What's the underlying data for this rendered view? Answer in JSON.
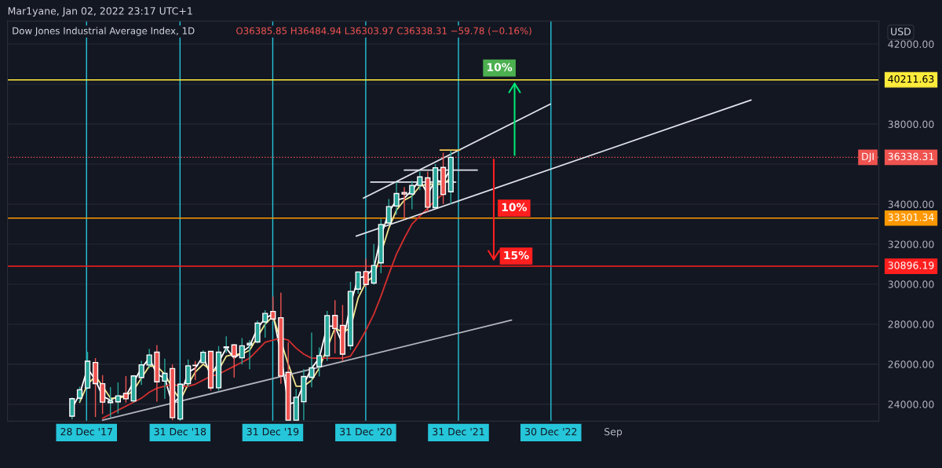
{
  "chart_data": {
    "type": "candlestick",
    "title": "Dow Jones Industrial Average Index, 1D",
    "subtitle": "Mar1yane, Jan 02, 2022 23:17 UTC+1",
    "ylabel": "USD",
    "x": [
      "2017-11",
      "2017-12",
      "2018-01",
      "2018-02",
      "2018-03",
      "2018-04",
      "2018-05",
      "2018-06",
      "2018-07",
      "2018-08",
      "2018-09",
      "2018-10",
      "2018-11",
      "2018-12",
      "2019-01",
      "2019-02",
      "2019-03",
      "2019-04",
      "2019-05",
      "2019-06",
      "2019-07",
      "2019-08",
      "2019-09",
      "2019-10",
      "2019-11",
      "2019-12",
      "2020-01",
      "2020-02",
      "2020-03",
      "2020-04",
      "2020-05",
      "2020-06",
      "2020-07",
      "2020-08",
      "2020-09",
      "2020-10",
      "2020-11",
      "2020-12",
      "2021-01",
      "2021-02",
      "2021-03",
      "2021-04",
      "2021-05",
      "2021-06",
      "2021-07",
      "2021-08",
      "2021-09",
      "2021-10",
      "2021-11",
      "2021-12"
    ],
    "ohlc": [
      [
        23400,
        24330,
        23240,
        24272
      ],
      [
        24305,
        24876,
        24124,
        24719
      ],
      [
        24809,
        26617,
        24741,
        26149
      ],
      [
        26083,
        26307,
        23360,
        25029
      ],
      [
        25025,
        25450,
        23509,
        24103
      ],
      [
        24076,
        24858,
        23344,
        24163
      ],
      [
        24117,
        25087,
        23531,
        24416
      ],
      [
        24542,
        25403,
        24077,
        24271
      ],
      [
        24161,
        25462,
        24077,
        25415
      ],
      [
        25334,
        26167,
        24965,
        25965
      ],
      [
        25956,
        26770,
        25800,
        26458
      ],
      [
        26598,
        26951,
        24123,
        25116
      ],
      [
        25152,
        26277,
        24268,
        25538
      ],
      [
        25779,
        25980,
        23200,
        23327
      ],
      [
        23258,
        25057,
        23200,
        24999
      ],
      [
        25025,
        26241,
        24883,
        25916
      ],
      [
        25941,
        26156,
        25208,
        25929
      ],
      [
        26076,
        26696,
        26071,
        26593
      ],
      [
        26640,
        26660,
        24680,
        24815
      ],
      [
        24820,
        26908,
        24681,
        26600
      ],
      [
        26818,
        27399,
        26560,
        26864
      ],
      [
        26963,
        27003,
        25339,
        26403
      ],
      [
        26319,
        27307,
        25978,
        26917
      ],
      [
        26962,
        27202,
        25743,
        27046
      ],
      [
        27109,
        28175,
        27040,
        28051
      ],
      [
        28109,
        28701,
        27326,
        28538
      ],
      [
        28638,
        29374,
        28169,
        28256
      ],
      [
        28320,
        29569,
        25017,
        25409
      ],
      [
        25591,
        27102,
        23200,
        23200
      ],
      [
        23200,
        24765,
        23200,
        24346
      ],
      [
        24121,
        25759,
        23200,
        25383
      ],
      [
        25343,
        27581,
        24844,
        25813
      ],
      [
        25880,
        26838,
        25388,
        26428
      ],
      [
        26418,
        28659,
        26170,
        28430
      ],
      [
        28433,
        29199,
        26537,
        27782
      ],
      [
        27941,
        28958,
        26144,
        26502
      ],
      [
        26925,
        30116,
        26715,
        29638
      ],
      [
        29751,
        30637,
        29526,
        30606
      ],
      [
        30628,
        31272,
        29856,
        29983
      ],
      [
        30054,
        32009,
        29968,
        30932
      ],
      [
        31065,
        33259,
        30547,
        32982
      ],
      [
        33055,
        34257,
        32983,
        33875
      ],
      [
        33904,
        35091,
        33474,
        34529
      ],
      [
        34584,
        34849,
        33272,
        34503
      ],
      [
        34507,
        35171,
        33742,
        34935
      ],
      [
        34935,
        35631,
        34695,
        35361
      ],
      [
        35312,
        35631,
        33613,
        33844
      ],
      [
        33820,
        36000,
        33785,
        35820
      ],
      [
        35833,
        36565,
        34006,
        34484
      ],
      [
        34614,
        36679,
        34006,
        36338
      ]
    ],
    "colors": [
      "#26a69a",
      "#26a69a",
      "#26a69a",
      "#ef5350",
      "#ef5350",
      "#26a69a",
      "#26a69a",
      "#ef5350",
      "#26a69a",
      "#26a69a",
      "#26a69a",
      "#ef5350",
      "#26a69a",
      "#ef5350",
      "#26a69a",
      "#26a69a",
      "#ef5350",
      "#26a69a",
      "#ef5350",
      "#26a69a",
      "#26a69a",
      "#ef5350",
      "#26a69a",
      "#26a69a",
      "#26a69a",
      "#26a69a",
      "#ef5350",
      "#ef5350",
      "#ef5350",
      "#26a69a",
      "#26a69a",
      "#26a69a",
      "#26a69a",
      "#26a69a",
      "#ef5350",
      "#ef5350",
      "#26a69a",
      "#26a69a",
      "#ef5350",
      "#26a69a",
      "#26a69a",
      "#26a69a",
      "#26a69a",
      "#ef5350",
      "#26a69a",
      "#26a69a",
      "#ef5350",
      "#26a69a",
      "#ef5350",
      "#26a69a"
    ],
    "series": [
      {
        "type": "line",
        "color": "#ffffff",
        "values": [
          23800,
          24500,
          25800,
          25200,
          24400,
          24200,
          24400,
          24400,
          25100,
          25800,
          26300,
          25500,
          25300,
          24000,
          24400,
          25600,
          25800,
          26400,
          25400,
          26100,
          26800,
          26300,
          26600,
          26900,
          27800,
          28300,
          28500,
          26500,
          24000,
          24100,
          25000,
          25800,
          26300,
          27900,
          27900,
          27000,
          29000,
          30300,
          30400,
          30800,
          32400,
          33600,
          34200,
          34300,
          34700,
          35200,
          34500,
          35200,
          35100,
          35800
        ]
      },
      {
        "type": "line",
        "color": "#f0e68c",
        "values": [
          null,
          24100,
          25000,
          25400,
          24900,
          24300,
          24300,
          24400,
          24700,
          25300,
          25900,
          25900,
          25500,
          24800,
          24200,
          25000,
          25600,
          26000,
          25700,
          25700,
          26400,
          26500,
          26500,
          26700,
          null,
          28000,
          28400,
          null,
          26000,
          24900,
          24900,
          25200,
          25800,
          null,
          27800,
          27600,
          27800,
          29300,
          30100,
          30400,
          null,
          32800,
          33700,
          34200,
          34400,
          34900,
          35000,
          35000,
          35000,
          35300
        ]
      },
      {
        "type": "line",
        "color": "#d32f2f",
        "values": [
          null,
          null,
          null,
          null,
          23300,
          23500,
          23700,
          23900,
          24100,
          24300,
          24600,
          24800,
          24900,
          25000,
          24900,
          24900,
          25000,
          25200,
          25400,
          25500,
          25700,
          25900,
          26100,
          26300,
          26700,
          27100,
          27200,
          27300,
          27200,
          26800,
          26500,
          26300,
          26300,
          26300,
          26300,
          26300,
          26400,
          27000,
          27700,
          28500,
          29400,
          30500,
          31500,
          32300,
          33000,
          33400,
          33800,
          34200,
          34500,
          null
        ]
      },
      {
        "type": "line",
        "color": "#e0e3eb",
        "x": [
          "2020-12-22",
          "2022-12-28"
        ],
        "values": [
          34300,
          39000
        ]
      },
      {
        "type": "line",
        "color": "#e0e3eb",
        "x": [
          "2020-11-24",
          "2025-02-25"
        ],
        "values": [
          32400,
          39200
        ]
      },
      {
        "type": "line",
        "color": "#b2b5be",
        "x": [
          "2018-03-01",
          "2022-07-28"
        ],
        "values": [
          23200,
          28200
        ]
      },
      {
        "type": "line",
        "color": "#e0e3eb",
        "x": [
          "2021-01-20",
          "2021-12-20"
        ],
        "values": [
          35100,
          35100
        ]
      },
      {
        "type": "line",
        "color": "#e0e3eb",
        "x": [
          "2021-06-01",
          "2022-03-15"
        ],
        "values": [
          35700,
          35700
        ]
      },
      {
        "type": "line",
        "color": "#f9c74f",
        "x": [
          "2021-10-20",
          "2022-01-05"
        ],
        "values": [
          36700,
          36700
        ]
      }
    ],
    "xlim": [
      "2017-02-20",
      "2026-07-13"
    ],
    "ylim": [
      23150,
      43150
    ],
    "xticks": [
      {
        "value": "2017-12-28",
        "label": "28 Dec '17"
      },
      {
        "value": "2018-12-31",
        "label": "31 Dec '18"
      },
      {
        "value": "2019-12-31",
        "label": "31 Dec '19"
      },
      {
        "value": "2020-12-31",
        "label": "31 Dec '20"
      },
      {
        "value": "2021-12-31",
        "label": "31 Dec '21"
      },
      {
        "value": "2022-12-30",
        "label": "30 Dec '22"
      },
      {
        "value": "2023-09-01",
        "label": "Sep"
      }
    ],
    "yticks": [
      {
        "value": 24000,
        "label": "24000.00"
      },
      {
        "value": 26000,
        "label": "26000.00"
      },
      {
        "value": 28000,
        "label": "28000.00"
      },
      {
        "value": 30000,
        "label": "30000.00"
      },
      {
        "value": 32000,
        "label": "32000.00"
      },
      {
        "value": 34000,
        "label": "34000.00"
      },
      {
        "value": 36000,
        "label": null
      },
      {
        "value": 38000,
        "label": "38000.00"
      },
      {
        "value": 40000,
        "label": null
      },
      {
        "value": 42000,
        "label": "42000.00"
      }
    ],
    "ref_lines": [
      {
        "axis": "x",
        "value": "2017-12-28",
        "color": "#26c6da"
      },
      {
        "axis": "x",
        "value": "2018-12-31",
        "color": "#26c6da"
      },
      {
        "axis": "x",
        "value": "2019-12-31",
        "color": "#26c6da"
      },
      {
        "axis": "x",
        "value": "2020-12-31",
        "color": "#26c6da"
      },
      {
        "axis": "x",
        "value": "2021-12-31",
        "color": "#26c6da"
      },
      {
        "axis": "x",
        "value": "2022-12-30",
        "color": "#26c6da"
      },
      {
        "axis": "y",
        "value": 40211.63,
        "label": "40211.63",
        "color": "#ffeb3b"
      },
      {
        "axis": "y",
        "value": 33301.34,
        "label": "33301.34",
        "color": "#ff9800"
      },
      {
        "axis": "y",
        "value": 30896.19,
        "label": "30896.19",
        "color": "#ff1f1f"
      },
      {
        "axis": "y",
        "value": 36338.31,
        "label": "36338.31",
        "color": "#ef5350",
        "line_style": "dotted"
      }
    ],
    "annotations": [
      "O36385.85 H36484.94 L36303.97 C36338.31 −59.78 (−0.16%)",
      {
        "text": "10%",
        "x": "2022-06-10",
        "y": 40800
      },
      {
        "text": "10%",
        "x": "2022-08-07",
        "y": 33800
      },
      {
        "text": "15%",
        "x": "2022-08-15",
        "y": 31400
      },
      {
        "text": "DJI",
        "y": 36338.31
      }
    ],
    "grid": "y",
    "legend": false
  }
}
